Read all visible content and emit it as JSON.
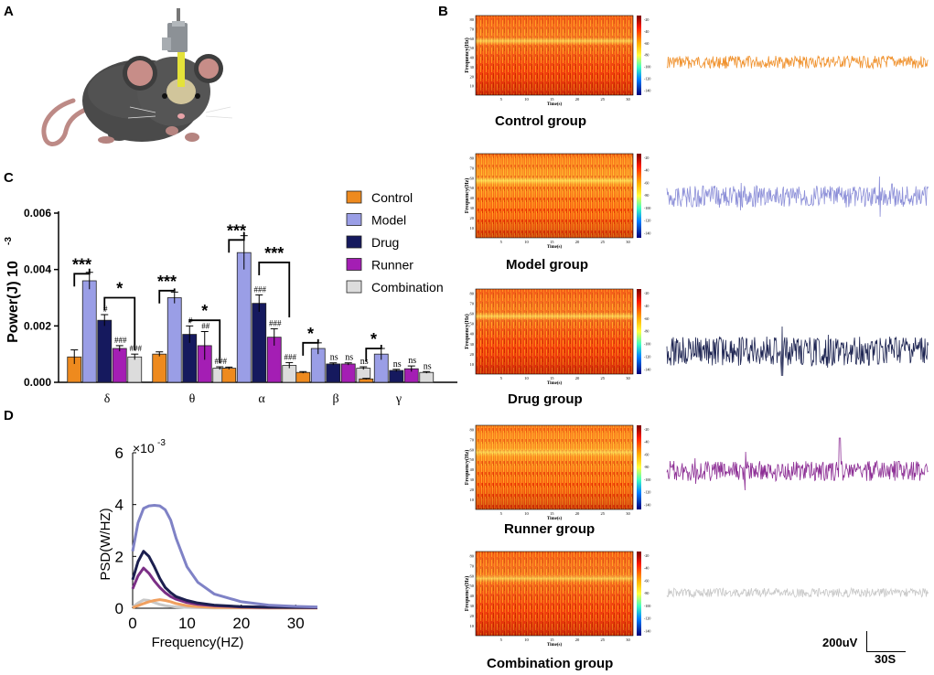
{
  "panels": {
    "a": "A",
    "b": "B",
    "c": "C",
    "d": "D"
  },
  "bar_chart": {
    "ylabel": "Power(J) 10",
    "ylabel_exp": "-3",
    "yticks": [
      "0.000",
      "0.002",
      "0.004",
      "0.006"
    ],
    "categories": [
      "δ",
      "θ",
      "α",
      "β",
      "γ"
    ],
    "legend": [
      "Control",
      "Model",
      "Drug",
      "Runner",
      "Combination"
    ],
    "colors": [
      "#ee8a1e",
      "#9a9ee6",
      "#15195e",
      "#a41eb4",
      "#dcdcdc"
    ],
    "sig_star3": "***",
    "sig_star1": "*"
  },
  "psd_chart": {
    "ylabel": "PSD(W/HZ)",
    "xlabel": "Frequency(HZ)",
    "scale_base": "×10",
    "scale_exp": "-3",
    "yticks": [
      "0",
      "2",
      "4",
      "6"
    ],
    "xticks": [
      "0",
      "10",
      "20",
      "30"
    ]
  },
  "spectrograms": {
    "ylabel": "Frequency(Hz)",
    "xlabel": "Time(s)",
    "xticks": [
      "5",
      "10",
      "15",
      "20",
      "25",
      "30"
    ],
    "yticks": [
      "10",
      "20",
      "30",
      "40",
      "50",
      "60",
      "70",
      "80"
    ],
    "cbar_ticks": [
      "-20",
      "-40",
      "-60",
      "-80",
      "-100",
      "-120",
      "-140"
    ],
    "groups": [
      "Control group",
      "Model group",
      "Drug group",
      "Runner group",
      "Combination group"
    ],
    "trace_colors": [
      "#f0922e",
      "#8c8fd8",
      "#1d2452",
      "#8d2f95",
      "#c8c8c8"
    ]
  },
  "scale_bar": {
    "amplitude": "200uV",
    "time": "30S"
  },
  "chart_data": [
    {
      "type": "bar",
      "title": "",
      "xlabel": "",
      "ylabel": "Power(J) 10-3",
      "ylim": [
        0,
        0.006
      ],
      "categories": [
        "δ",
        "θ",
        "α",
        "β",
        "γ"
      ],
      "series": [
        {
          "name": "Control",
          "values": [
            0.0009,
            0.001,
            0.0005,
            0.00035,
            0.00012
          ],
          "errors": [
            0.00025,
            8e-05,
            4e-05,
            3e-05,
            2e-05
          ]
        },
        {
          "name": "Model",
          "values": [
            0.0036,
            0.003,
            0.0046,
            0.0012,
            0.001
          ],
          "errors": [
            0.0003,
            0.0002,
            0.0006,
            0.0002,
            0.0002
          ]
        },
        {
          "name": "Drug",
          "values": [
            0.0022,
            0.0017,
            0.0028,
            0.00065,
            0.00042
          ],
          "errors": [
            0.0002,
            0.0003,
            0.0003,
            4e-05,
            4e-05
          ]
        },
        {
          "name": "Runner",
          "values": [
            0.0012,
            0.0013,
            0.0016,
            0.00065,
            0.00048
          ],
          "errors": [
            0.0001,
            0.0005,
            0.0003,
            4e-05,
            0.0001
          ]
        },
        {
          "name": "Combination",
          "values": [
            0.0009,
            0.0005,
            0.0006,
            0.0005,
            0.00035
          ],
          "errors": [
            0.0001,
            5e-05,
            0.0001,
            5e-05,
            3e-05
          ]
        }
      ],
      "annotations": {
        "hash_marks": [
          [
            "#",
            "###",
            "###"
          ],
          [
            "#",
            "##",
            "###"
          ],
          [
            "###",
            "###",
            "###"
          ],
          [
            "ns",
            "ns",
            "ns"
          ],
          [
            "ns",
            "ns",
            "ns"
          ]
        ],
        "brackets": [
          {
            "category": "δ",
            "from": "Control",
            "to": "Model",
            "label": "***"
          },
          {
            "category": "δ",
            "from": "Drug",
            "to": "Combination",
            "label": "*"
          },
          {
            "category": "θ",
            "from": "Control",
            "to": "Model",
            "label": "***"
          },
          {
            "category": "θ",
            "from": "Drug",
            "to": "Combination",
            "label": "*"
          },
          {
            "category": "α",
            "from": "Control",
            "to": "Model",
            "label": "***"
          },
          {
            "category": "α",
            "from": "Drug",
            "to": "Combination",
            "label": "***"
          },
          {
            "category": "β",
            "from": "Control",
            "to": "Model",
            "label": "*"
          },
          {
            "category": "γ",
            "from": "Control",
            "to": "Model",
            "label": "*"
          }
        ]
      }
    },
    {
      "type": "line",
      "title": "",
      "xlabel": "Frequency(HZ)",
      "ylabel": "PSD(W/HZ)",
      "xlim": [
        0,
        34
      ],
      "ylim": [
        0,
        6
      ],
      "y_scale": "×10-3",
      "x": [
        0,
        1,
        2,
        3,
        4,
        5,
        6,
        7,
        8,
        10,
        12,
        15,
        20,
        25,
        30,
        34
      ],
      "series": [
        {
          "name": "Model",
          "color": "#7f82c6",
          "values": [
            2.2,
            3.3,
            3.85,
            3.95,
            3.97,
            3.95,
            3.8,
            3.4,
            2.7,
            1.6,
            1.0,
            0.55,
            0.25,
            0.12,
            0.07,
            0.05
          ]
        },
        {
          "name": "Drug",
          "color": "#1c1f4f",
          "values": [
            1.1,
            1.8,
            2.2,
            2.0,
            1.6,
            1.15,
            0.8,
            0.6,
            0.45,
            0.3,
            0.2,
            0.12,
            0.06,
            0.04,
            0.03,
            0.03
          ]
        },
        {
          "name": "Runner",
          "color": "#7b2f86",
          "values": [
            0.75,
            1.25,
            1.55,
            1.35,
            1.05,
            0.8,
            0.6,
            0.45,
            0.35,
            0.22,
            0.15,
            0.1,
            0.05,
            0.03,
            0.03,
            0.02
          ]
        },
        {
          "name": "Control",
          "color": "#f0a060",
          "values": [
            0.02,
            0.1,
            0.18,
            0.25,
            0.3,
            0.33,
            0.3,
            0.25,
            0.18,
            0.1,
            0.06,
            0.03,
            0.02,
            0.01,
            0.01,
            0.01
          ]
        },
        {
          "name": "Combination",
          "color": "#c8c8c8",
          "values": [
            0.05,
            0.2,
            0.32,
            0.3,
            0.22,
            0.15,
            0.1,
            0.07,
            0.05,
            0.03,
            0.02,
            0.01,
            0.01,
            0.01,
            0.01,
            0.01
          ]
        }
      ]
    }
  ]
}
